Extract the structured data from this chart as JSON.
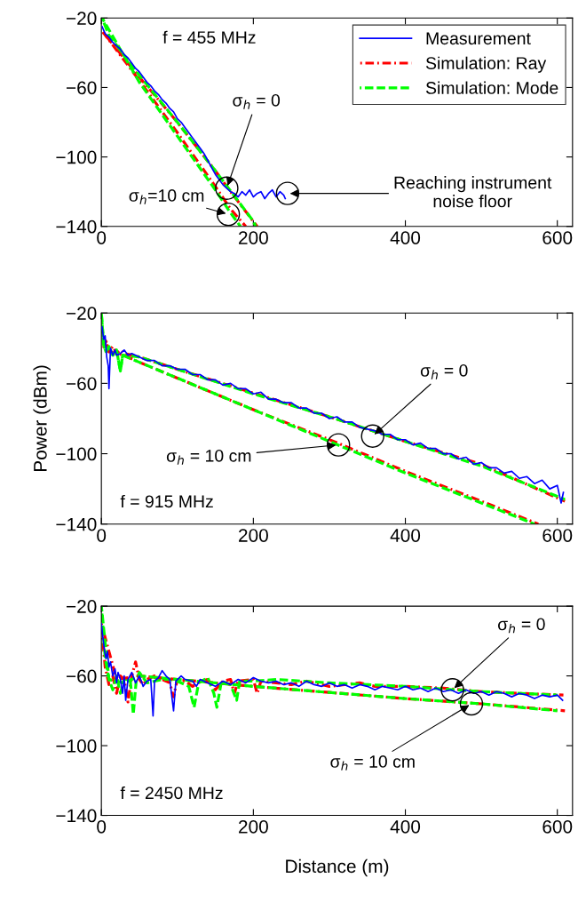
{
  "chart_data": [
    {
      "type": "line",
      "xlim": [
        0,
        620
      ],
      "ylim": [
        -140,
        -20
      ],
      "xticks": [
        0,
        200,
        400,
        600
      ],
      "yticks": [
        -140,
        -100,
        -60,
        -20
      ],
      "grid": false,
      "legend": "top right",
      "marker": "none",
      "annotations": [
        "f = 455 MHz",
        {
          "text": "σ$_{h}$ = 0",
          "x": 165,
          "y": -118
        },
        {
          "text": "σ$_{h}$=10 cm",
          "x": 167,
          "y": -133
        },
        {
          "text": "Reaching instrument\nnoise floor",
          "x": 245,
          "y": -121
        }
      ],
      "series": [
        {
          "name": "Measurement",
          "color": "#0000ff",
          "line_style": "solid",
          "x": [
            1,
            5,
            10,
            15,
            20,
            25,
            30,
            35,
            40,
            45,
            50,
            55,
            60,
            65,
            70,
            75,
            80,
            85,
            90,
            95,
            100,
            105,
            110,
            115,
            120,
            125,
            130,
            135,
            140,
            145,
            150,
            155,
            160,
            165,
            170,
            175,
            180,
            185,
            190,
            195,
            200,
            205,
            210,
            215,
            220,
            225,
            230,
            235,
            240,
            242
          ],
          "values": [
            -25,
            -29,
            -31,
            -34,
            -36,
            -38,
            -41,
            -43,
            -46,
            -49,
            -51,
            -54,
            -57,
            -59,
            -62,
            -64,
            -67,
            -69,
            -72,
            -74,
            -78,
            -80,
            -83,
            -86,
            -89,
            -92,
            -95,
            -98,
            -102,
            -106,
            -110,
            -113,
            -116,
            -118,
            -120,
            -121,
            -123,
            -120,
            -122,
            -119,
            -123,
            -121,
            -120,
            -124,
            -121,
            -119,
            -123,
            -120,
            -122,
            -124
          ]
        },
        {
          "name": "Simulation: Ray",
          "color": "#ff0000",
          "line_style": "dashdot",
          "x": [
            2,
            50,
            100,
            150,
            170,
            205
          ],
          "values": [
            -28,
            -54,
            -80,
            -108,
            -120,
            -140
          ]
        },
        {
          "name": "Simulation: Mode",
          "color": "#00ff00",
          "line_style": "dashed",
          "x": [
            1,
            10,
            50,
            100,
            150,
            200,
            203
          ],
          "values": [
            -20,
            -30,
            -53,
            -80,
            -108,
            -137,
            -140
          ]
        },
        {
          "color": "#ff0000",
          "line_style": "dashdot",
          "x": [
            2,
            50,
            100,
            150,
            170,
            190
          ],
          "values": [
            -28,
            -56,
            -86,
            -117,
            -130,
            -140
          ]
        },
        {
          "color": "#00ff00",
          "line_style": "dashed",
          "x": [
            1,
            50,
            100,
            150,
            168,
            183
          ],
          "values": [
            -20,
            -57,
            -88,
            -119,
            -131,
            -140
          ]
        }
      ]
    },
    {
      "type": "line",
      "xlim": [
        0,
        620
      ],
      "ylim": [
        -140,
        -20
      ],
      "xticks": [
        0,
        200,
        400,
        600
      ],
      "yticks": [
        -140,
        -100,
        -60,
        -20
      ],
      "grid": false,
      "marker": "none",
      "ylabel": "Power (dBm)",
      "annotations": [
        "f = 915 MHz",
        {
          "text": "σ$_{h}$ = 0",
          "x": 357,
          "y": -90
        },
        {
          "text": "σ$_{h}$ = 10 cm",
          "x": 312,
          "y": -95
        }
      ],
      "series": [
        {
          "color": "#0000ff",
          "line_style": "solid",
          "x": [
            1,
            3,
            5,
            7,
            9,
            10,
            12,
            15,
            18,
            20,
            25,
            30,
            35,
            40,
            50,
            60,
            70,
            80,
            90,
            100,
            110,
            120,
            130,
            140,
            150,
            160,
            170,
            180,
            190,
            200,
            210,
            220,
            230,
            240,
            250,
            260,
            270,
            280,
            290,
            300,
            310,
            320,
            330,
            340,
            350,
            360,
            370,
            380,
            390,
            400,
            410,
            420,
            430,
            440,
            450,
            460,
            470,
            480,
            490,
            500,
            510,
            520,
            530,
            540,
            550,
            560,
            570,
            580,
            590,
            600,
            605,
            608
          ],
          "values": [
            -28,
            -35,
            -33,
            -45,
            -50,
            -63,
            -40,
            -44,
            -41,
            -44,
            -43,
            -41,
            -44,
            -43,
            -45,
            -47,
            -47,
            -50,
            -50,
            -52,
            -52,
            -55,
            -55,
            -58,
            -58,
            -61,
            -60,
            -63,
            -63,
            -66,
            -65,
            -69,
            -69,
            -71,
            -71,
            -74,
            -74,
            -77,
            -77,
            -80,
            -79,
            -82,
            -82,
            -85,
            -86,
            -87,
            -89,
            -89,
            -92,
            -92,
            -95,
            -94,
            -97,
            -97,
            -100,
            -100,
            -103,
            -102,
            -106,
            -105,
            -108,
            -108,
            -111,
            -110,
            -114,
            -113,
            -117,
            -115,
            -120,
            -118,
            -128,
            -122
          ]
        },
        {
          "color": "#ff0000",
          "line_style": "dashdot",
          "x": [
            3,
            6,
            10,
            15,
            20,
            25,
            30,
            50,
            100,
            200,
            300,
            400,
            500,
            610
          ],
          "values": [
            -40,
            -36,
            -42,
            -39,
            -43,
            -41,
            -43,
            -45,
            -52,
            -65.5,
            -79,
            -93,
            -106,
            -127
          ]
        },
        {
          "color": "#00ff00",
          "line_style": "dashed",
          "x": [
            0,
            3,
            6,
            10,
            15,
            20,
            25,
            28,
            50,
            100,
            200,
            300,
            400,
            500,
            610
          ],
          "values": [
            -20,
            -38,
            -42,
            -39,
            -44,
            -41,
            -53,
            -44,
            -45,
            -52,
            -66,
            -79,
            -93,
            -107,
            -126
          ]
        },
        {
          "color": "#ff0000",
          "line_style": "dashdot",
          "x": [
            3,
            6,
            10,
            20,
            30,
            50,
            100,
            200,
            300,
            400,
            500,
            575
          ],
          "values": [
            -40,
            -36,
            -42,
            -43,
            -44,
            -48,
            -57,
            -75,
            -92,
            -110,
            -127,
            -140
          ]
        },
        {
          "color": "#00ff00",
          "line_style": "dashed",
          "x": [
            0,
            3,
            6,
            10,
            15,
            20,
            25,
            28,
            50,
            100,
            200,
            300,
            400,
            500,
            570
          ],
          "values": [
            -20,
            -38,
            -42,
            -39,
            -44,
            -41,
            -53,
            -44,
            -48,
            -57,
            -75,
            -93,
            -111,
            -128,
            -140
          ]
        }
      ]
    },
    {
      "type": "line",
      "xlim": [
        0,
        620
      ],
      "ylim": [
        -140,
        -20
      ],
      "xticks": [
        0,
        200,
        400,
        600
      ],
      "yticks": [
        -140,
        -100,
        -60,
        -20
      ],
      "grid": false,
      "marker": "none",
      "xlabel": "Distance (m)",
      "annotations": [
        "f = 2450 MHz",
        {
          "text": "σ$_{h}$ = 0",
          "x": 462,
          "y": -68
        },
        {
          "text": "σ$_{h}$ = 10 cm",
          "x": 487,
          "y": -76
        }
      ],
      "series": [
        {
          "color": "#0000ff",
          "line_style": "solid",
          "x": [
            0,
            2,
            4,
            6,
            8,
            10,
            12,
            15,
            18,
            20,
            22,
            25,
            28,
            30,
            32,
            35,
            40,
            45,
            50,
            55,
            60,
            65,
            68,
            70,
            75,
            80,
            85,
            90,
            95,
            98,
            105,
            110,
            120,
            125,
            130,
            140,
            150,
            160,
            170,
            180,
            190,
            200,
            210,
            220,
            230,
            240,
            250,
            260,
            270,
            280,
            290,
            300,
            310,
            320,
            330,
            340,
            350,
            360,
            370,
            380,
            390,
            400,
            410,
            420,
            430,
            440,
            450,
            460,
            470,
            480,
            490,
            500,
            510,
            520,
            530,
            540,
            550,
            560,
            570,
            580,
            590,
            600,
            607
          ],
          "values": [
            -30,
            -38,
            -45,
            -50,
            -46,
            -55,
            -52,
            -60,
            -56,
            -64,
            -58,
            -62,
            -70,
            -60,
            -74,
            -62,
            -58,
            -64,
            -60,
            -66,
            -63,
            -62,
            -83,
            -63,
            -61,
            -57,
            -60,
            -62,
            -80,
            -63,
            -60,
            -62,
            -63,
            -66,
            -62,
            -64,
            -66,
            -63,
            -65,
            -62,
            -64,
            -61,
            -63,
            -64,
            -63,
            -65,
            -64,
            -66,
            -63,
            -65,
            -66,
            -64,
            -66,
            -65,
            -67,
            -65,
            -66,
            -68,
            -66,
            -67,
            -68,
            -66,
            -68,
            -67,
            -69,
            -67,
            -69,
            -68,
            -70,
            -68,
            -70,
            -69,
            -71,
            -69,
            -70,
            -72,
            -70,
            -71,
            -73,
            -71,
            -72,
            -71,
            -74
          ]
        },
        {
          "color": "#ff0000",
          "line_style": "dashdot",
          "x": [
            0,
            5,
            10,
            15,
            20,
            25,
            30,
            35,
            40,
            45,
            50,
            55,
            60,
            70,
            80,
            90,
            95,
            100,
            110,
            120,
            130,
            140,
            150,
            160,
            170,
            175,
            180,
            200,
            205,
            210,
            250,
            270,
            300,
            320,
            340,
            360,
            400,
            450,
            500,
            550,
            608
          ],
          "values": [
            -30,
            -55,
            -65,
            -60,
            -70,
            -60,
            -62,
            -75,
            -60,
            -52,
            -62,
            -65,
            -62,
            -60,
            -62,
            -64,
            -72,
            -62,
            -63,
            -66,
            -63,
            -62,
            -68,
            -63,
            -62,
            -70,
            -63,
            -62,
            -70,
            -63,
            -65,
            -63,
            -66,
            -65,
            -64,
            -66,
            -66,
            -67,
            -69,
            -70,
            -71
          ]
        },
        {
          "color": "#00ff00",
          "line_style": "dashed",
          "x": [
            0,
            5,
            10,
            15,
            20,
            25,
            30,
            38,
            42,
            46,
            50,
            60,
            80,
            90,
            100,
            115,
            122,
            128,
            140,
            148,
            152,
            158,
            170,
            178,
            182,
            200,
            230,
            300,
            400,
            500,
            600
          ],
          "values": [
            -20,
            -50,
            -62,
            -68,
            -60,
            -70,
            -62,
            -62,
            -82,
            -62,
            -58,
            -64,
            -62,
            -62,
            -63,
            -66,
            -78,
            -64,
            -61,
            -70,
            -78,
            -63,
            -65,
            -74,
            -63,
            -63,
            -62,
            -64,
            -66,
            -69,
            -71
          ]
        },
        {
          "color": "#ff0000",
          "line_style": "dashdot",
          "x": [
            0,
            20,
            50,
            100,
            200,
            300,
            400,
            500,
            610
          ],
          "values": [
            -30,
            -62,
            -60,
            -62,
            -66,
            -69.5,
            -73,
            -76,
            -80
          ]
        },
        {
          "color": "#00ff00",
          "line_style": "dashed",
          "x": [
            0,
            10,
            30,
            50,
            100,
            200,
            300,
            400,
            500,
            600
          ],
          "values": [
            -20,
            -62,
            -64,
            -60,
            -62,
            -66,
            -69.5,
            -73,
            -76,
            -80
          ]
        }
      ]
    }
  ]
}
